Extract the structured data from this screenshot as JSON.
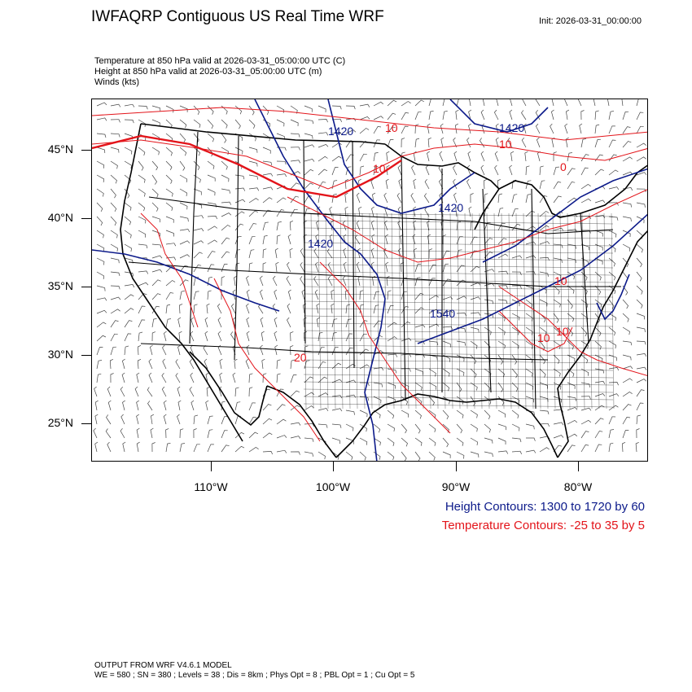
{
  "title": "IWFAQRP Contiguous US Real Time WRF",
  "init_label": "Init: 2026-03-31_00:00:00",
  "fields": [
    "Temperature at 850 hPa valid at 2026-03-31_05:00:00 UTC   (C)",
    "Height at 850 hPa valid at 2026-03-31_05:00:00 UTC   (m)",
    "Winds   (kts)"
  ],
  "lat_labels": [
    "45°N",
    "40°N",
    "35°N",
    "30°N",
    "25°N"
  ],
  "lon_labels": [
    "110°W",
    "100°W",
    "90°W",
    "80°W"
  ],
  "height_contours": "Height Contours: 1300 to 1720 by 60",
  "temperature_contours": "Temperature Contours: -25 to 35 by 5",
  "height_labels": [
    "1420",
    "1420",
    "1420",
    "1420",
    "1540"
  ],
  "temp_labels": [
    "10",
    "10",
    "10",
    "0",
    "10",
    "10",
    "10",
    "20"
  ],
  "footer": [
    "OUTPUT FROM WRF V4.6.1 MODEL",
    "WE = 580 ; SN = 380 ; Levels = 38 ; Dis = 8km ; Phys Opt = 8 ; PBL Opt = 1 ; Cu Opt = 5"
  ],
  "colors": {
    "height": "#0c1a8a",
    "temperature": "#e3141a",
    "boundaries": "#000000"
  }
}
